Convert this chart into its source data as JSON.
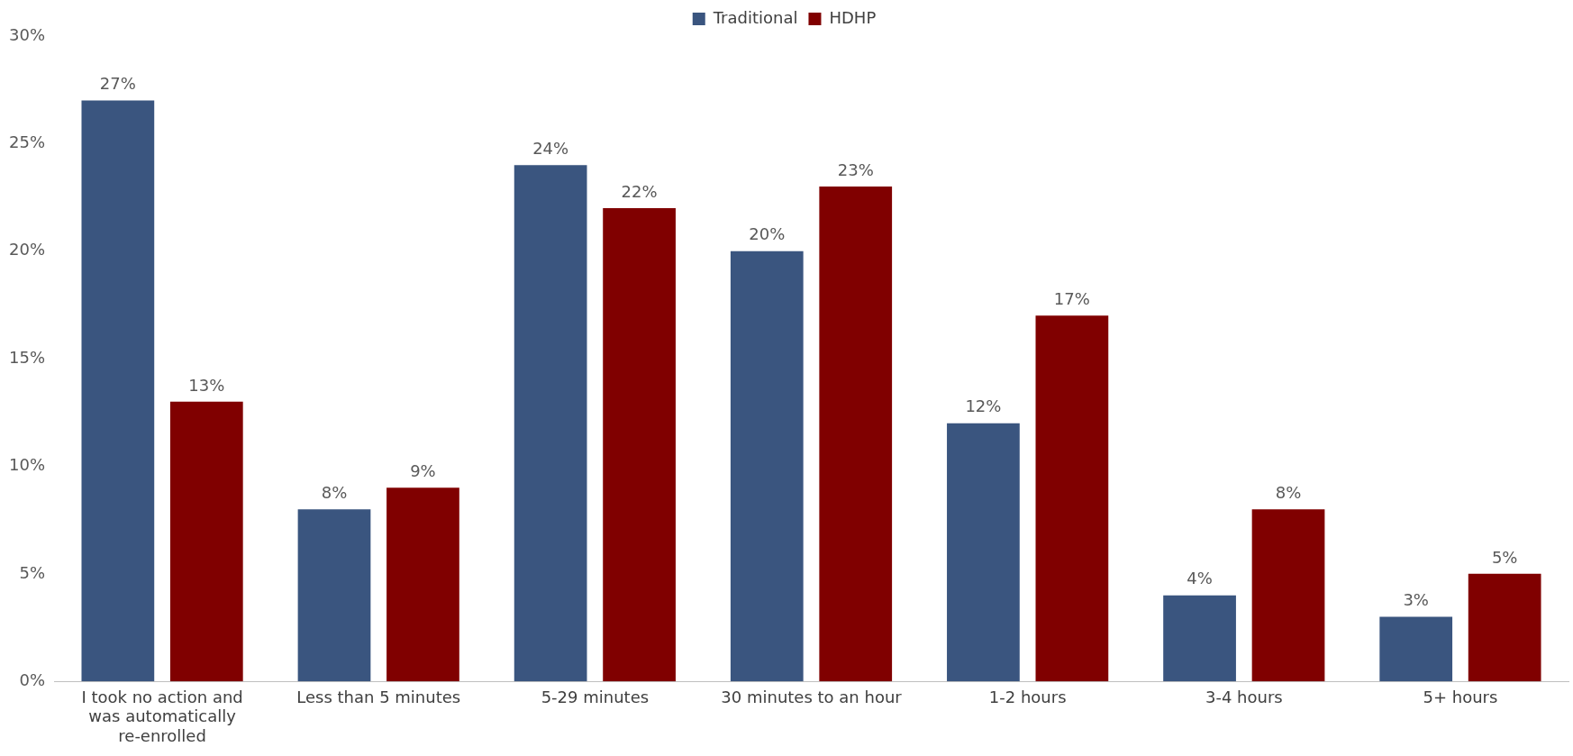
{
  "chart_data": {
    "type": "bar",
    "categories": [
      "I took no action and was automatically re-enrolled",
      "Less than 5 minutes",
      "5-29 minutes",
      "30 minutes to an hour",
      "1-2 hours",
      "3-4 hours",
      "5+ hours"
    ],
    "series": [
      {
        "name": "Traditional",
        "color": "#3a557f",
        "values": [
          27,
          8,
          24,
          20,
          12,
          4,
          3
        ],
        "value_labels": [
          "27%",
          "8%",
          "24%",
          "20%",
          "12%",
          "4%",
          "3%"
        ]
      },
      {
        "name": "HDHP",
        "color": "#800000",
        "values": [
          13,
          9,
          22,
          23,
          17,
          8,
          5
        ],
        "value_labels": [
          "13%",
          "9%",
          "22%",
          "23%",
          "17%",
          "8%",
          "5%"
        ]
      }
    ],
    "ylim": [
      0,
      30
    ],
    "yticks": [
      {
        "value": 0,
        "label": "0%"
      },
      {
        "value": 5,
        "label": "5%"
      },
      {
        "value": 10,
        "label": "10%"
      },
      {
        "value": 15,
        "label": "15%"
      },
      {
        "value": 20,
        "label": "20%"
      },
      {
        "value": 25,
        "label": "25%"
      },
      {
        "value": 30,
        "label": "30%"
      }
    ],
    "grid": false,
    "legend": "top"
  }
}
